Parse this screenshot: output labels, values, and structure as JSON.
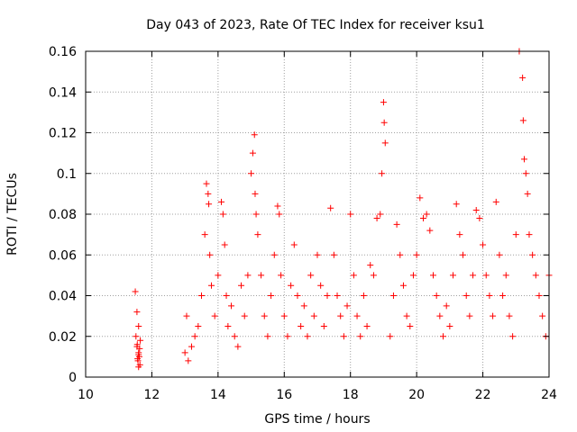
{
  "chart_data": {
    "type": "scatter",
    "title": "Day 043 of 2023, Rate Of TEC Index for receiver ksu1",
    "xlabel": "GPS time / hours",
    "ylabel": "ROTI / TECUs",
    "xlim": [
      10,
      24
    ],
    "ylim": [
      0,
      0.16
    ],
    "xticks": [
      "10",
      "12",
      "14",
      "16",
      "18",
      "20",
      "22",
      "24"
    ],
    "yticks": [
      "0",
      "0.02",
      "0.04",
      "0.06",
      "0.08",
      "0.1",
      "0.12",
      "0.14",
      "0.16"
    ],
    "grid": true,
    "marker": "+",
    "color": "#ff0000",
    "series": [
      {
        "x": [
          11.5,
          11.55,
          11.6,
          11.65,
          11.55,
          11.6,
          11.62,
          11.58,
          11.52,
          11.64,
          11.56,
          11.6,
          11.57,
          11.63,
          11.6,
          13.0,
          13.05,
          13.1,
          13.2,
          13.3,
          13.4,
          13.5,
          13.6,
          13.65,
          13.7,
          13.72,
          13.75,
          13.8,
          13.9,
          14.0,
          14.1,
          14.15,
          14.2,
          14.25,
          14.3,
          14.4,
          14.5,
          14.6,
          14.7,
          14.8,
          14.9,
          15.0,
          15.05,
          15.1,
          15.12,
          15.15,
          15.2,
          15.3,
          15.4,
          15.5,
          15.6,
          15.7,
          15.8,
          15.85,
          15.9,
          16.0,
          16.1,
          16.2,
          16.3,
          16.4,
          16.5,
          16.6,
          16.7,
          16.8,
          16.9,
          17.0,
          17.1,
          17.2,
          17.3,
          17.4,
          17.5,
          17.6,
          17.7,
          17.8,
          17.9,
          18.0,
          18.1,
          18.2,
          18.3,
          18.4,
          18.5,
          18.6,
          18.7,
          18.8,
          18.9,
          18.95,
          19.0,
          19.02,
          19.05,
          19.2,
          19.3,
          19.4,
          19.5,
          19.6,
          19.7,
          19.8,
          19.9,
          20.0,
          20.1,
          20.2,
          20.3,
          20.4,
          20.5,
          20.6,
          20.7,
          20.8,
          20.9,
          21.0,
          21.1,
          21.2,
          21.3,
          21.4,
          21.5,
          21.6,
          21.7,
          21.8,
          21.9,
          22.0,
          22.1,
          22.2,
          22.3,
          22.4,
          22.5,
          22.6,
          22.7,
          22.8,
          22.9,
          23.0,
          23.1,
          23.2,
          23.22,
          23.25,
          23.3,
          23.35,
          23.4,
          23.5,
          23.6,
          23.7,
          23.8,
          23.9,
          24.0
        ],
        "y": [
          0.042,
          0.032,
          0.025,
          0.018,
          0.015,
          0.012,
          0.01,
          0.008,
          0.02,
          0.006,
          0.016,
          0.011,
          0.009,
          0.014,
          0.005,
          0.012,
          0.03,
          0.008,
          0.015,
          0.02,
          0.025,
          0.04,
          0.07,
          0.095,
          0.09,
          0.085,
          0.06,
          0.045,
          0.03,
          0.05,
          0.086,
          0.08,
          0.065,
          0.04,
          0.025,
          0.035,
          0.02,
          0.015,
          0.045,
          0.03,
          0.05,
          0.1,
          0.11,
          0.119,
          0.09,
          0.08,
          0.07,
          0.05,
          0.03,
          0.02,
          0.04,
          0.06,
          0.084,
          0.08,
          0.05,
          0.03,
          0.02,
          0.045,
          0.065,
          0.04,
          0.025,
          0.035,
          0.02,
          0.05,
          0.03,
          0.06,
          0.045,
          0.025,
          0.04,
          0.083,
          0.06,
          0.04,
          0.03,
          0.02,
          0.035,
          0.08,
          0.05,
          0.03,
          0.02,
          0.04,
          0.025,
          0.055,
          0.05,
          0.078,
          0.08,
          0.1,
          0.135,
          0.125,
          0.115,
          0.02,
          0.04,
          0.075,
          0.06,
          0.045,
          0.03,
          0.025,
          0.05,
          0.06,
          0.088,
          0.078,
          0.08,
          0.072,
          0.05,
          0.04,
          0.03,
          0.02,
          0.035,
          0.025,
          0.05,
          0.085,
          0.07,
          0.06,
          0.04,
          0.03,
          0.05,
          0.082,
          0.078,
          0.065,
          0.05,
          0.04,
          0.03,
          0.086,
          0.06,
          0.04,
          0.05,
          0.03,
          0.02,
          0.07,
          0.16,
          0.147,
          0.126,
          0.107,
          0.1,
          0.09,
          0.07,
          0.06,
          0.05,
          0.04,
          0.03,
          0.02,
          0.05
        ]
      }
    ]
  }
}
